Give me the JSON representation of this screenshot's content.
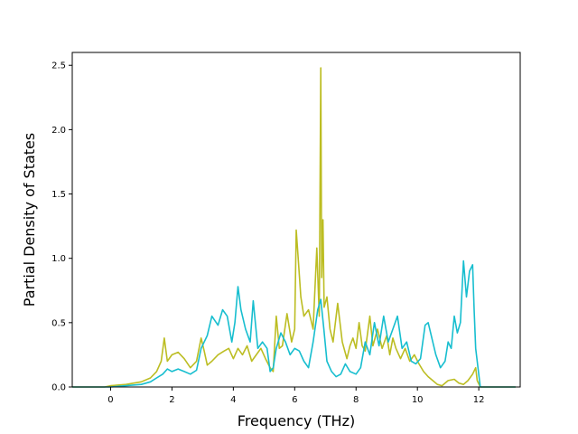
{
  "chart_data": {
    "type": "line",
    "title": "",
    "xlabel": "Frequency (THz)",
    "ylabel": "Partial Density of States",
    "xlim": [
      -1.25,
      13.35
    ],
    "ylim": [
      0.0,
      2.6
    ],
    "xticks": [
      0,
      2,
      4,
      6,
      8,
      10,
      12
    ],
    "xtick_labels": [
      "0",
      "2",
      "4",
      "6",
      "8",
      "10",
      "12"
    ],
    "yticks": [
      0.0,
      0.5,
      1.0,
      1.5,
      2.0,
      2.5
    ],
    "ytick_labels": [
      "0.0",
      "0.5",
      "1.0",
      "1.5",
      "2.0",
      "2.5"
    ],
    "grid": false,
    "legend": "none",
    "series": [
      {
        "color": "#bcbd22",
        "x": [
          -1.25,
          -0.2,
          0.0,
          0.5,
          1.0,
          1.3,
          1.5,
          1.65,
          1.75,
          1.85,
          2.0,
          2.2,
          2.4,
          2.6,
          2.8,
          2.95,
          3.05,
          3.15,
          3.3,
          3.5,
          3.7,
          3.85,
          4.0,
          4.15,
          4.3,
          4.45,
          4.6,
          4.75,
          4.9,
          5.05,
          5.2,
          5.3,
          5.4,
          5.5,
          5.6,
          5.75,
          5.9,
          6.0,
          6.05,
          6.1,
          6.2,
          6.3,
          6.45,
          6.6,
          6.72,
          6.8,
          6.85,
          6.88,
          6.92,
          6.96,
          7.05,
          7.15,
          7.25,
          7.4,
          7.55,
          7.7,
          7.8,
          7.9,
          8.0,
          8.1,
          8.2,
          8.3,
          8.45,
          8.55,
          8.7,
          8.85,
          9.0,
          9.1,
          9.2,
          9.3,
          9.45,
          9.6,
          9.75,
          9.9,
          10.05,
          10.2,
          10.35,
          10.5,
          10.65,
          10.8,
          11.0,
          11.2,
          11.35,
          11.5,
          11.65,
          11.8,
          11.9,
          11.95,
          12.05,
          13.2
        ],
        "y": [
          0.0,
          0.0,
          0.01,
          0.02,
          0.04,
          0.07,
          0.12,
          0.2,
          0.38,
          0.2,
          0.25,
          0.27,
          0.22,
          0.15,
          0.2,
          0.38,
          0.28,
          0.17,
          0.2,
          0.25,
          0.28,
          0.3,
          0.22,
          0.3,
          0.25,
          0.32,
          0.2,
          0.25,
          0.3,
          0.22,
          0.15,
          0.12,
          0.55,
          0.3,
          0.32,
          0.57,
          0.35,
          0.45,
          1.22,
          1.05,
          0.7,
          0.55,
          0.6,
          0.45,
          1.08,
          0.55,
          2.48,
          0.85,
          1.3,
          0.62,
          0.7,
          0.45,
          0.35,
          0.65,
          0.35,
          0.22,
          0.32,
          0.38,
          0.3,
          0.5,
          0.32,
          0.28,
          0.55,
          0.32,
          0.45,
          0.3,
          0.4,
          0.25,
          0.38,
          0.3,
          0.22,
          0.3,
          0.2,
          0.25,
          0.18,
          0.12,
          0.08,
          0.05,
          0.02,
          0.01,
          0.05,
          0.06,
          0.03,
          0.02,
          0.05,
          0.1,
          0.15,
          0.05,
          0.0,
          0.0
        ]
      },
      {
        "color": "#17becf",
        "x": [
          -1.25,
          -0.2,
          0.0,
          0.5,
          1.0,
          1.3,
          1.5,
          1.7,
          1.85,
          2.0,
          2.2,
          2.4,
          2.6,
          2.8,
          2.95,
          3.05,
          3.15,
          3.3,
          3.5,
          3.65,
          3.8,
          3.95,
          4.05,
          4.15,
          4.25,
          4.4,
          4.55,
          4.65,
          4.8,
          4.95,
          5.1,
          5.2,
          5.3,
          5.4,
          5.55,
          5.7,
          5.85,
          6.0,
          6.15,
          6.3,
          6.45,
          6.6,
          6.75,
          6.85,
          6.95,
          7.05,
          7.2,
          7.35,
          7.5,
          7.65,
          7.8,
          8.0,
          8.15,
          8.3,
          8.45,
          8.6,
          8.75,
          8.9,
          9.05,
          9.2,
          9.35,
          9.5,
          9.65,
          9.8,
          9.95,
          10.1,
          10.25,
          10.35,
          10.45,
          10.6,
          10.75,
          10.9,
          11.0,
          11.1,
          11.2,
          11.3,
          11.4,
          11.5,
          11.6,
          11.7,
          11.8,
          11.85,
          11.9,
          12.0,
          12.05,
          13.2
        ],
        "y": [
          0.0,
          0.0,
          0.0,
          0.01,
          0.02,
          0.04,
          0.07,
          0.1,
          0.14,
          0.12,
          0.14,
          0.12,
          0.1,
          0.13,
          0.3,
          0.35,
          0.4,
          0.55,
          0.48,
          0.6,
          0.55,
          0.35,
          0.5,
          0.78,
          0.6,
          0.45,
          0.35,
          0.67,
          0.3,
          0.35,
          0.3,
          0.12,
          0.15,
          0.3,
          0.42,
          0.35,
          0.25,
          0.3,
          0.28,
          0.2,
          0.15,
          0.35,
          0.6,
          0.68,
          0.45,
          0.2,
          0.12,
          0.08,
          0.1,
          0.18,
          0.12,
          0.1,
          0.15,
          0.35,
          0.25,
          0.5,
          0.32,
          0.55,
          0.35,
          0.45,
          0.55,
          0.3,
          0.35,
          0.2,
          0.18,
          0.22,
          0.48,
          0.5,
          0.4,
          0.25,
          0.15,
          0.2,
          0.35,
          0.3,
          0.55,
          0.42,
          0.5,
          0.98,
          0.7,
          0.9,
          0.95,
          0.6,
          0.3,
          0.1,
          0.0,
          0.0
        ]
      }
    ]
  }
}
